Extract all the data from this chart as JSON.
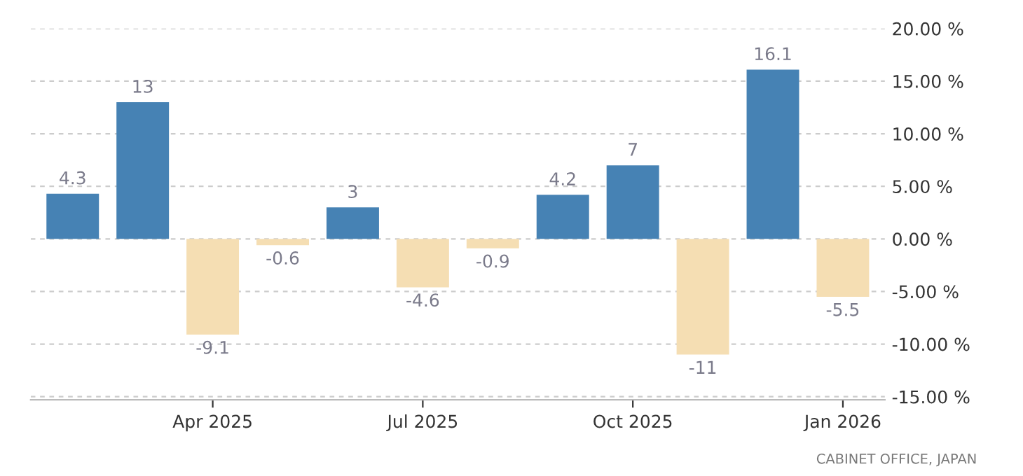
{
  "chart_data": {
    "type": "bar",
    "categories": [
      null,
      null,
      "Apr 2025",
      null,
      null,
      "Jul 2025",
      null,
      null,
      "Oct 2025",
      null,
      null,
      "Jan 2026"
    ],
    "values": [
      4.3,
      13,
      -9.1,
      -0.6,
      3,
      -4.6,
      -0.9,
      4.2,
      7,
      -11,
      16.1,
      -5.5
    ],
    "colors": [
      "#4682b4",
      "#4682b4",
      "#f5deb3",
      "#f5deb3",
      "#4682b4",
      "#f5deb3",
      "#f5deb3",
      "#4682b4",
      "#4682b4",
      "#f5deb3",
      "#4682b4",
      "#f5deb3"
    ],
    "ylim": [
      -15.3,
      20
    ],
    "yticks": [
      {
        "value": -15,
        "label": "-15.00 %"
      },
      {
        "value": -10,
        "label": "-10.00 %"
      },
      {
        "value": -5,
        "label": "-5.00 %"
      },
      {
        "value": 0,
        "label": "0.00 %"
      },
      {
        "value": 5,
        "label": "5.00 %"
      },
      {
        "value": 10,
        "label": "10.00 %"
      },
      {
        "value": 15,
        "label": "15.00 %"
      },
      {
        "value": 20,
        "label": "20.00 %"
      }
    ],
    "grid": "y",
    "data_labels": true,
    "annotations": [
      "CABINET OFFICE, JAPAN"
    ]
  }
}
